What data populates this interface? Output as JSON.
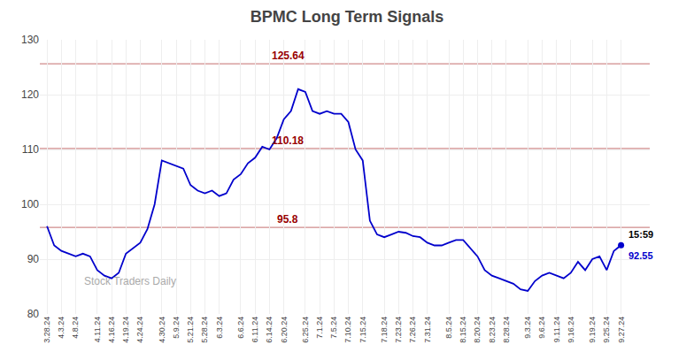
{
  "chart_data": {
    "type": "line",
    "title": "BPMC Long Term Signals",
    "categories": [
      "3.28.24",
      null,
      "4.3.24",
      null,
      "4.8.24",
      null,
      null,
      "4.11.24",
      null,
      "4.16.24",
      null,
      "4.19.24",
      null,
      "4.24.24",
      null,
      null,
      "4.30.24",
      null,
      "5.9.24",
      null,
      "5.21.24",
      null,
      "5.28.24",
      null,
      "6.3.24",
      null,
      null,
      "6.6.24",
      null,
      "6.11.24",
      null,
      "6.14.24",
      null,
      "6.20.24",
      null,
      null,
      "6.25.24",
      null,
      "7.1.24",
      null,
      "7.5.24",
      null,
      "7.10.24",
      null,
      "7.15.24",
      null,
      null,
      "7.18.24",
      null,
      "7.23.24",
      null,
      "7.26.24",
      null,
      "7.31.24",
      null,
      null,
      "8.5.24",
      null,
      "8.15.24",
      null,
      "8.20.24",
      null,
      "8.23.24",
      null,
      "8.28.24",
      null,
      null,
      "9.3.24",
      null,
      "9.6.24",
      null,
      "9.11.24",
      null,
      "9.16.24",
      null,
      null,
      "9.19.24",
      null,
      "9.25.24",
      null,
      "9.27.24"
    ],
    "values": [
      96.0,
      92.5,
      91.5,
      91.0,
      90.5,
      91.0,
      90.5,
      88.0,
      87.0,
      86.5,
      87.5,
      91.0,
      92.0,
      93.0,
      95.5,
      100.0,
      108.0,
      107.5,
      107.0,
      106.5,
      103.5,
      102.5,
      102.0,
      102.5,
      101.5,
      102.0,
      104.5,
      105.5,
      107.5,
      108.5,
      110.5,
      110.0,
      112.0,
      115.5,
      117.0,
      121.0,
      120.5,
      117.0,
      116.5,
      117.0,
      116.5,
      116.5,
      115.0,
      110.0,
      108.0,
      97.0,
      94.5,
      94.0,
      94.5,
      95.0,
      94.8,
      94.2,
      94.0,
      93.0,
      92.5,
      92.5,
      93.0,
      93.5,
      93.5,
      92.0,
      90.5,
      88.0,
      87.0,
      86.5,
      86.0,
      85.5,
      84.5,
      84.2,
      86.0,
      87.0,
      87.5,
      87.0,
      86.5,
      87.5,
      89.5,
      88.0,
      90.0,
      90.5,
      88.0,
      91.5,
      92.55
    ],
    "color": "#0000cc",
    "reference_lines": [
      {
        "value": 125.64,
        "label": "125.64",
        "color": "#990000"
      },
      {
        "value": 110.18,
        "label": "110.18",
        "color": "#990000"
      },
      {
        "value": 95.8,
        "label": "95.8",
        "color": "#990000"
      }
    ],
    "last_point_label": {
      "text": "15:59",
      "color": "#000000"
    },
    "watermark": {
      "text": "Stock Traders Daily",
      "color": "#aaaaaa"
    },
    "ylim": [
      80,
      130
    ],
    "yticks": [
      80,
      90,
      100,
      110,
      120,
      130
    ],
    "grid": true
  }
}
